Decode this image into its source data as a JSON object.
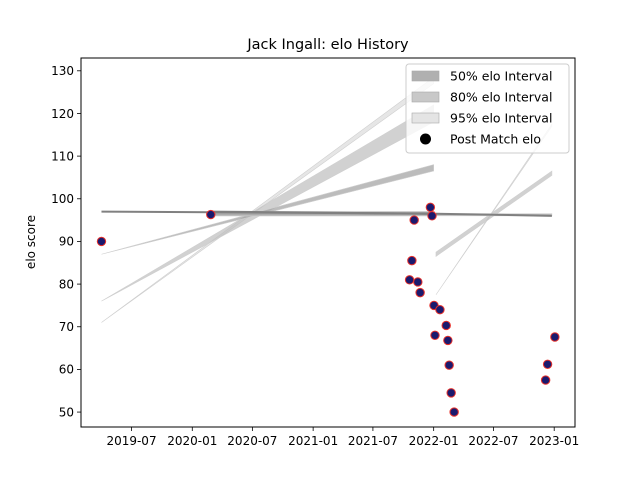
{
  "chart_data": {
    "type": "scatter",
    "title": "Jack Ingall: elo History",
    "xlabel": "",
    "ylabel": "elo score",
    "x_range": [
      "2019-01-29",
      "2023-03-05"
    ],
    "ylim": [
      46.5,
      133
    ],
    "x_ticks": [
      "2019-07",
      "2020-01",
      "2020-07",
      "2021-01",
      "2021-07",
      "2022-01",
      "2022-07",
      "2023-01"
    ],
    "y_ticks": [
      50,
      60,
      70,
      80,
      90,
      100,
      110,
      120,
      130
    ],
    "grid": false,
    "legend_position": "top-right",
    "legend": [
      {
        "label": "50% elo Interval",
        "kind": "patch",
        "color": "#b0b0b0"
      },
      {
        "label": "80% elo Interval",
        "kind": "patch",
        "color": "#c8c8c8"
      },
      {
        "label": "95% elo Interval",
        "kind": "patch",
        "color": "#e4e4e4"
      },
      {
        "label": "Post Match elo",
        "kind": "marker",
        "color": "#000000"
      }
    ],
    "colors": {
      "band50": "#a0a0a0",
      "band80": "#bdbdbd",
      "band95": "#dddddd",
      "mean_line": "#808080",
      "marker_face": "#1a1a6e",
      "marker_edge": "#e8302a"
    },
    "bands": [
      {
        "x": [
          "2019-04-01",
          "2022-01-01"
        ],
        "mean": [
          97,
          96.5
        ],
        "50": [
          [
            87,
            108
          ],
          [
            87,
            106.5
          ]
        ],
        "80": [
          [
            76,
            122
          ],
          [
            76,
            118
          ]
        ],
        "95": [
          [
            71,
            128.5
          ],
          [
            71,
            127
          ]
        ]
      },
      {
        "x": [
          "2020-02-25",
          "2022-01-04"
        ],
        "mean": [
          97,
          96.5
        ],
        "50": [
          [
            97,
            97
          ],
          [
            96,
            96
          ]
        ],
        "80": [
          [
            97,
            97
          ],
          [
            96,
            96
          ]
        ],
        "95": [
          [
            97,
            97
          ],
          [
            96,
            96
          ]
        ]
      },
      {
        "x": [
          "2022-01-08",
          "2022-12-25"
        ],
        "mean": [
          96.5,
          96
        ],
        "50": [
          [
            96.5,
            96.5
          ],
          [
            96,
            96
          ]
        ],
        "80": [
          [
            87.5,
            106.5
          ],
          [
            86.5,
            105.5
          ]
        ],
        "95": [
          [
            77.5,
            117.5
          ],
          [
            77.5,
            117
          ]
        ]
      }
    ],
    "series": [
      {
        "name": "Post Match elo",
        "points": [
          {
            "x": "2019-04-01",
            "y": 90
          },
          {
            "x": "2020-02-26",
            "y": 96.3
          },
          {
            "x": "2021-10-20",
            "y": 81
          },
          {
            "x": "2021-10-27",
            "y": 85.5
          },
          {
            "x": "2021-11-03",
            "y": 95
          },
          {
            "x": "2021-11-14",
            "y": 80.5
          },
          {
            "x": "2021-11-21",
            "y": 78
          },
          {
            "x": "2021-12-22",
            "y": 98
          },
          {
            "x": "2021-12-27",
            "y": 96
          },
          {
            "x": "2022-01-02",
            "y": 75
          },
          {
            "x": "2022-01-05",
            "y": 68
          },
          {
            "x": "2022-01-20",
            "y": 74
          },
          {
            "x": "2022-02-08",
            "y": 70.3
          },
          {
            "x": "2022-02-13",
            "y": 66.8
          },
          {
            "x": "2022-02-17",
            "y": 61
          },
          {
            "x": "2022-02-23",
            "y": 54.5
          },
          {
            "x": "2022-03-04",
            "y": 50
          },
          {
            "x": "2022-12-06",
            "y": 57.5
          },
          {
            "x": "2022-12-12",
            "y": 61.2
          },
          {
            "x": "2023-01-03",
            "y": 67.6
          }
        ]
      }
    ]
  }
}
